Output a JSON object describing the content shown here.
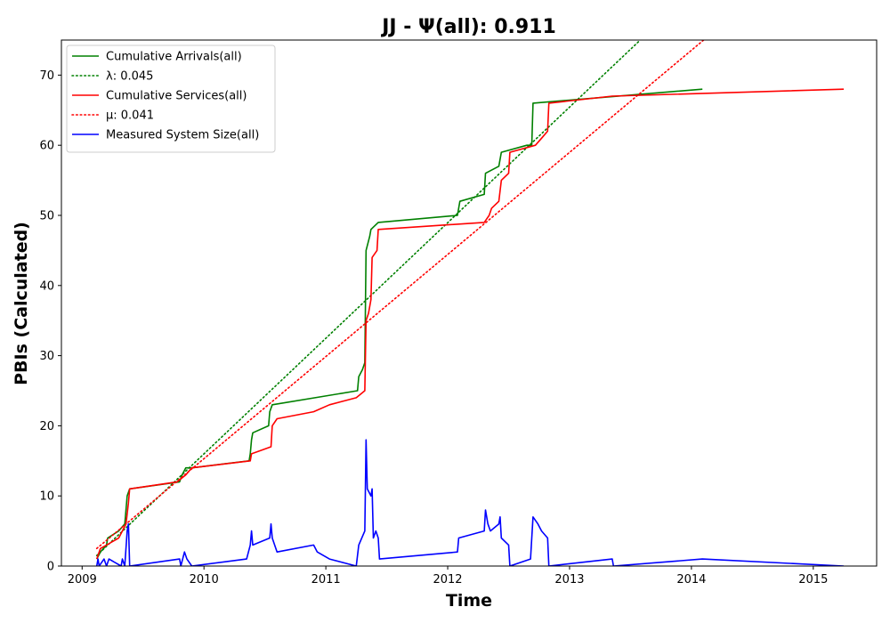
{
  "chart_data": {
    "type": "line",
    "title": "JJ -  Ψ(all): 0.911",
    "xlabel": "Time",
    "ylabel": "PBIs (Calculated)",
    "xlim": [
      2008.83,
      2015.52
    ],
    "ylim": [
      0,
      75
    ],
    "x_ticks": [
      2009,
      2010,
      2011,
      2012,
      2013,
      2014,
      2015
    ],
    "y_ticks": [
      0,
      10,
      20,
      30,
      40,
      50,
      60,
      70
    ],
    "grid": false,
    "legend_position": "top-left",
    "series": [
      {
        "name": "Cumulative Arrivals(all)",
        "color": "#008000",
        "style": "solid",
        "points": [
          [
            2009.12,
            1
          ],
          [
            2009.15,
            2
          ],
          [
            2009.2,
            3
          ],
          [
            2009.21,
            4
          ],
          [
            2009.3,
            5
          ],
          [
            2009.35,
            6
          ],
          [
            2009.37,
            10
          ],
          [
            2009.39,
            11
          ],
          [
            2009.8,
            12
          ],
          [
            2009.82,
            13
          ],
          [
            2009.85,
            14
          ],
          [
            2009.9,
            14
          ],
          [
            2010.37,
            15
          ],
          [
            2010.38,
            16
          ],
          [
            2010.39,
            18
          ],
          [
            2010.4,
            19
          ],
          [
            2010.53,
            20
          ],
          [
            2010.54,
            22
          ],
          [
            2010.56,
            23
          ],
          [
            2011.26,
            25
          ],
          [
            2011.27,
            27
          ],
          [
            2011.3,
            28
          ],
          [
            2011.32,
            29
          ],
          [
            2011.33,
            45
          ],
          [
            2011.36,
            47
          ],
          [
            2011.37,
            48
          ],
          [
            2011.43,
            49
          ],
          [
            2012.08,
            50
          ],
          [
            2012.1,
            52
          ],
          [
            2012.3,
            53
          ],
          [
            2012.31,
            56
          ],
          [
            2012.42,
            57
          ],
          [
            2012.44,
            59
          ],
          [
            2012.65,
            60
          ],
          [
            2012.69,
            60
          ],
          [
            2012.7,
            66
          ],
          [
            2014.09,
            68
          ]
        ]
      },
      {
        "name": "λ: 0.045",
        "color": "#008000",
        "style": "dotted",
        "points": [
          [
            2009.12,
            1.5
          ],
          [
            2013.58,
            75
          ]
        ]
      },
      {
        "name": "Cumulative Services(all)",
        "color": "#ff0000",
        "style": "solid",
        "points": [
          [
            2009.12,
            1
          ],
          [
            2009.15,
            2.5
          ],
          [
            2009.2,
            3
          ],
          [
            2009.3,
            4
          ],
          [
            2009.33,
            5
          ],
          [
            2009.36,
            6
          ],
          [
            2009.38,
            9
          ],
          [
            2009.39,
            11
          ],
          [
            2009.78,
            12
          ],
          [
            2009.85,
            13
          ],
          [
            2009.9,
            14
          ],
          [
            2010.38,
            15
          ],
          [
            2010.39,
            16
          ],
          [
            2010.55,
            17
          ],
          [
            2010.56,
            20
          ],
          [
            2010.6,
            21
          ],
          [
            2010.9,
            22
          ],
          [
            2011.03,
            23
          ],
          [
            2011.25,
            24
          ],
          [
            2011.32,
            25
          ],
          [
            2011.33,
            35
          ],
          [
            2011.35,
            36
          ],
          [
            2011.37,
            38
          ],
          [
            2011.38,
            44
          ],
          [
            2011.42,
            45
          ],
          [
            2011.43,
            48
          ],
          [
            2012.3,
            49
          ],
          [
            2012.34,
            50
          ],
          [
            2012.36,
            51
          ],
          [
            2012.42,
            52
          ],
          [
            2012.44,
            55
          ],
          [
            2012.5,
            56
          ],
          [
            2012.51,
            59
          ],
          [
            2012.72,
            60
          ],
          [
            2012.77,
            61
          ],
          [
            2012.82,
            62
          ],
          [
            2012.83,
            66
          ],
          [
            2013.35,
            67
          ],
          [
            2015.25,
            68
          ]
        ]
      },
      {
        "name": "μ: 0.041",
        "color": "#ff0000",
        "style": "dotted",
        "points": [
          [
            2009.12,
            2.5
          ],
          [
            2014.1,
            75
          ]
        ]
      },
      {
        "name": "Measured System Size(all)",
        "color": "#0000ff",
        "style": "solid",
        "points": [
          [
            2009.12,
            0
          ],
          [
            2009.13,
            1
          ],
          [
            2009.14,
            0
          ],
          [
            2009.18,
            1
          ],
          [
            2009.2,
            0
          ],
          [
            2009.22,
            1
          ],
          [
            2009.32,
            0
          ],
          [
            2009.33,
            1
          ],
          [
            2009.35,
            0
          ],
          [
            2009.37,
            5
          ],
          [
            2009.38,
            6
          ],
          [
            2009.39,
            0
          ],
          [
            2009.8,
            1
          ],
          [
            2009.81,
            0
          ],
          [
            2009.84,
            2
          ],
          [
            2009.86,
            1
          ],
          [
            2009.9,
            0
          ],
          [
            2010.35,
            1
          ],
          [
            2010.38,
            3
          ],
          [
            2010.39,
            5
          ],
          [
            2010.4,
            3
          ],
          [
            2010.54,
            4
          ],
          [
            2010.55,
            6
          ],
          [
            2010.56,
            4
          ],
          [
            2010.6,
            2
          ],
          [
            2010.9,
            3
          ],
          [
            2010.93,
            2
          ],
          [
            2011.03,
            1
          ],
          [
            2011.25,
            0
          ],
          [
            2011.27,
            3
          ],
          [
            2011.32,
            5
          ],
          [
            2011.33,
            18
          ],
          [
            2011.34,
            11
          ],
          [
            2011.37,
            10
          ],
          [
            2011.38,
            11
          ],
          [
            2011.39,
            4
          ],
          [
            2011.41,
            5
          ],
          [
            2011.43,
            4
          ],
          [
            2011.44,
            1
          ],
          [
            2012.08,
            2
          ],
          [
            2012.09,
            4
          ],
          [
            2012.3,
            5
          ],
          [
            2012.31,
            8
          ],
          [
            2012.33,
            6
          ],
          [
            2012.35,
            5
          ],
          [
            2012.42,
            6
          ],
          [
            2012.43,
            7
          ],
          [
            2012.44,
            4
          ],
          [
            2012.5,
            3
          ],
          [
            2012.51,
            0
          ],
          [
            2012.68,
            1
          ],
          [
            2012.7,
            7
          ],
          [
            2012.74,
            6
          ],
          [
            2012.77,
            5
          ],
          [
            2012.82,
            4
          ],
          [
            2012.83,
            0
          ],
          [
            2013.35,
            1
          ],
          [
            2013.36,
            0
          ],
          [
            2014.09,
            1
          ],
          [
            2015.25,
            0
          ]
        ]
      }
    ]
  }
}
